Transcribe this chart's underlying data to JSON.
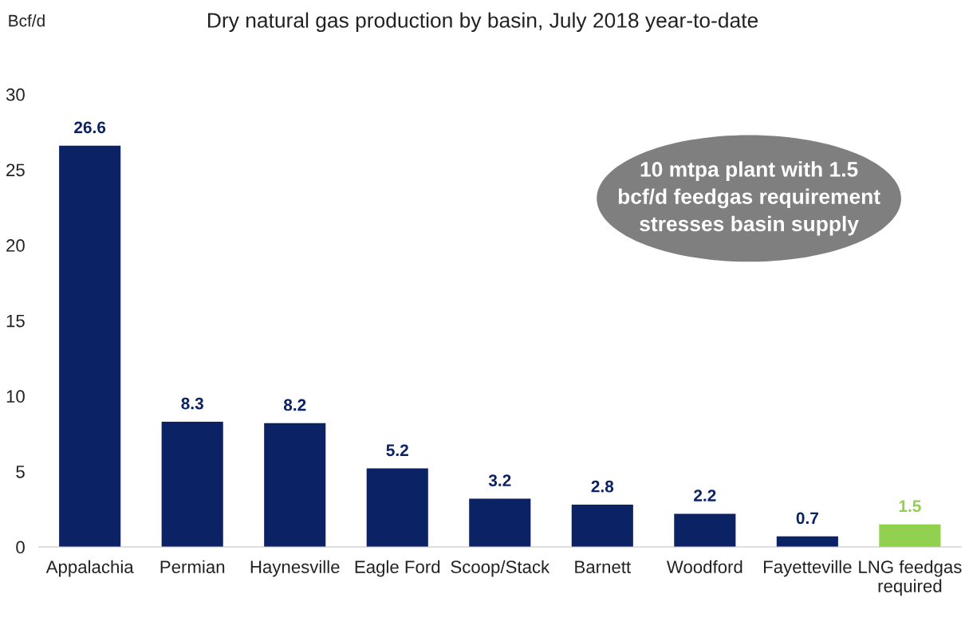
{
  "chart_data": {
    "type": "bar",
    "title": "Dry natural gas production by basin, July 2018 year-to-date",
    "ylabel": "Bcf/d",
    "categories": [
      "Appalachia",
      "Permian",
      "Haynesville",
      "Eagle Ford",
      "Scoop/Stack",
      "Barnett",
      "Woodford",
      "Fayetteville",
      "LNG feedgas\nrequired"
    ],
    "values": [
      26.6,
      8.3,
      8.2,
      5.2,
      3.2,
      2.8,
      2.2,
      0.7,
      1.5
    ],
    "colors": [
      "#0b2265",
      "#0b2265",
      "#0b2265",
      "#0b2265",
      "#0b2265",
      "#0b2265",
      "#0b2265",
      "#0b2265",
      "#92d050"
    ],
    "ylim": [
      0,
      30
    ],
    "yticks": [
      0,
      5,
      10,
      15,
      20,
      25,
      30
    ],
    "grid": false,
    "data_labels": true,
    "annotations": [
      "10 mtpa plant with 1.5\nbcf/d feedgas requirement\nstresses basin supply"
    ]
  }
}
